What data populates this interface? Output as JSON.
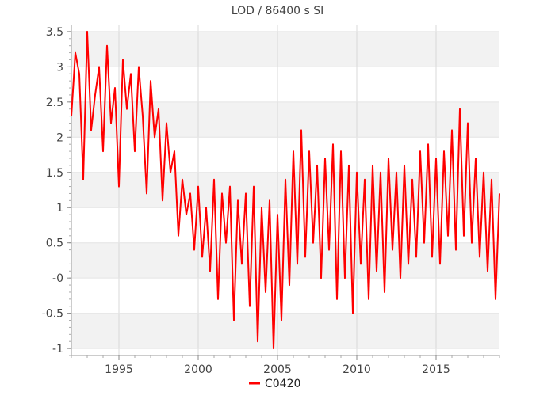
{
  "chart_data": {
    "type": "line",
    "title": "LOD / 86400 s SI",
    "xlabel": "",
    "ylabel": "",
    "xlim": [
      1992.0,
      2019.0
    ],
    "ylim": [
      -1.1,
      3.6
    ],
    "x_ticks": [
      1995,
      2000,
      2005,
      2010,
      2015
    ],
    "y_ticks": [
      {
        "value": 3.5,
        "label": "3.5"
      },
      {
        "value": 3,
        "label": "3"
      },
      {
        "value": 2.5,
        "label": "2.5"
      },
      {
        "value": 2,
        "label": "2"
      },
      {
        "value": 1.5,
        "label": "1.5"
      },
      {
        "value": 1,
        "label": "1"
      },
      {
        "value": 0.5,
        "label": "0.5"
      },
      {
        "value": 0,
        "label": "-0"
      },
      {
        "value": -0.5,
        "label": "-0.5"
      },
      {
        "value": -1,
        "label": "-1"
      }
    ],
    "grid": true,
    "band_color": "#f2f2f2",
    "legend_position": "bottom-center",
    "series": [
      {
        "name": "C0420",
        "color": "#ff0000",
        "x": [
          1992.0,
          1992.25,
          1992.5,
          1992.75,
          1993.0,
          1993.25,
          1993.5,
          1993.75,
          1994.0,
          1994.25,
          1994.5,
          1994.75,
          1995.0,
          1995.25,
          1995.5,
          1995.75,
          1996.0,
          1996.25,
          1996.5,
          1996.75,
          1997.0,
          1997.25,
          1997.5,
          1997.75,
          1998.0,
          1998.25,
          1998.5,
          1998.75,
          1999.0,
          1999.25,
          1999.5,
          1999.75,
          2000.0,
          2000.25,
          2000.5,
          2000.75,
          2001.0,
          2001.25,
          2001.5,
          2001.75,
          2002.0,
          2002.25,
          2002.5,
          2002.75,
          2003.0,
          2003.25,
          2003.5,
          2003.75,
          2004.0,
          2004.25,
          2004.5,
          2004.75,
          2005.0,
          2005.25,
          2005.5,
          2005.75,
          2006.0,
          2006.25,
          2006.5,
          2006.75,
          2007.0,
          2007.25,
          2007.5,
          2007.75,
          2008.0,
          2008.25,
          2008.5,
          2008.75,
          2009.0,
          2009.25,
          2009.5,
          2009.75,
          2010.0,
          2010.25,
          2010.5,
          2010.75,
          2011.0,
          2011.25,
          2011.5,
          2011.75,
          2012.0,
          2012.25,
          2012.5,
          2012.75,
          2013.0,
          2013.25,
          2013.5,
          2013.75,
          2014.0,
          2014.25,
          2014.5,
          2014.75,
          2015.0,
          2015.25,
          2015.5,
          2015.75,
          2016.0,
          2016.25,
          2016.5,
          2016.75,
          2017.0,
          2017.25,
          2017.5,
          2017.75,
          2018.0,
          2018.25,
          2018.5,
          2018.75,
          2019.0
        ],
        "y": [
          2.3,
          3.2,
          2.9,
          1.4,
          3.5,
          2.1,
          2.6,
          3.0,
          1.8,
          3.3,
          2.2,
          2.7,
          1.3,
          3.1,
          2.4,
          2.9,
          1.8,
          3.0,
          2.3,
          1.2,
          2.8,
          2.0,
          2.4,
          1.1,
          2.2,
          1.5,
          1.8,
          0.6,
          1.4,
          0.9,
          1.2,
          0.4,
          1.3,
          0.3,
          1.0,
          0.1,
          1.4,
          -0.3,
          1.2,
          0.5,
          1.3,
          -0.6,
          1.1,
          0.2,
          1.2,
          -0.4,
          1.3,
          -0.9,
          1.0,
          -0.2,
          1.1,
          -1.0,
          0.9,
          -0.6,
          1.4,
          -0.1,
          1.8,
          0.2,
          2.1,
          0.3,
          1.8,
          0.5,
          1.6,
          0.0,
          1.7,
          0.4,
          1.9,
          -0.3,
          1.8,
          0.0,
          1.6,
          -0.5,
          1.5,
          0.2,
          1.4,
          -0.3,
          1.6,
          0.1,
          1.5,
          -0.2,
          1.7,
          0.4,
          1.5,
          0.0,
          1.6,
          0.2,
          1.4,
          0.3,
          1.8,
          0.5,
          1.9,
          0.3,
          1.7,
          0.2,
          1.8,
          0.6,
          2.1,
          0.4,
          2.4,
          0.6,
          2.2,
          0.5,
          1.7,
          0.3,
          1.5,
          0.1,
          1.4,
          -0.3,
          1.2
        ]
      }
    ]
  }
}
